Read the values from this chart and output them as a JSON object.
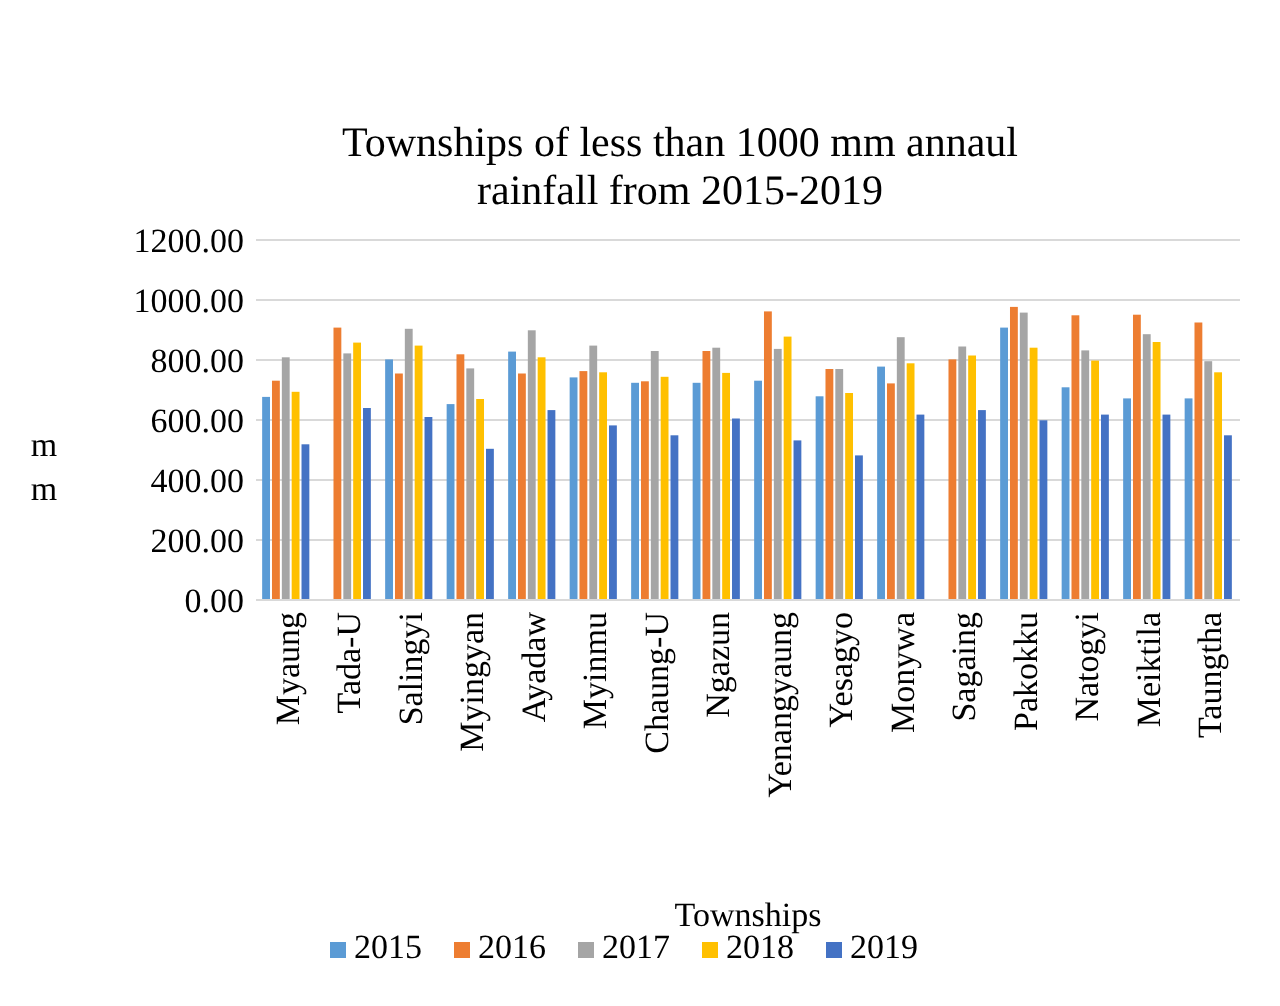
{
  "chart_data": {
    "type": "bar",
    "title": "Townships of less than 1000 mm annaul rainfall from 2015-2019",
    "xlabel": "Townships",
    "ylabel": "mm",
    "categories": [
      "Myaung",
      "Tada-U",
      "Salingyi",
      "Myingyan",
      "Ayadaw",
      "Myinmu",
      "Chaung-U",
      "Ngazun",
      "Yenangyaung",
      "Yesagyo",
      "Monywa",
      "Sagaing",
      "Pakokku",
      "Natogyi",
      "Meiktila",
      "Taungtha"
    ],
    "series": [
      {
        "name": "2015",
        "color": "#5b9bd5",
        "values": [
          677,
          null,
          802,
          653,
          828,
          742,
          724,
          724,
          731,
          679,
          778,
          null,
          908,
          709,
          672,
          672
        ]
      },
      {
        "name": "2016",
        "color": "#ed7d31",
        "values": [
          731,
          908,
          755,
          819,
          755,
          763,
          729,
          830,
          962,
          770,
          722,
          802,
          977,
          949,
          951,
          925
        ]
      },
      {
        "name": "2017",
        "color": "#a5a5a5",
        "values": [
          809,
          822,
          904,
          772,
          899,
          848,
          830,
          841,
          837,
          770,
          876,
          845,
          958,
          832,
          886,
          796
        ]
      },
      {
        "name": "2018",
        "color": "#ffc000",
        "values": [
          694,
          858,
          848,
          670,
          809,
          759,
          744,
          757,
          878,
          690,
          789,
          815,
          841,
          798,
          860,
          759
        ]
      },
      {
        "name": "2019",
        "color": "#4472c4",
        "values": [
          519,
          640,
          610,
          504,
          633,
          582,
          549,
          605,
          532,
          482,
          618,
          633,
          599,
          618,
          618,
          549
        ]
      }
    ],
    "ylim": [
      0,
      1200
    ],
    "yticks": [
      {
        "value": 0,
        "label": "0.00"
      },
      {
        "value": 200,
        "label": "200.00"
      },
      {
        "value": 400,
        "label": "400.00"
      },
      {
        "value": 600,
        "label": "600.00"
      },
      {
        "value": 800,
        "label": "800.00"
      },
      {
        "value": 1000,
        "label": "1000.00"
      },
      {
        "value": 1200,
        "label": "1200.00"
      }
    ],
    "grid": "y",
    "legend": "bottom"
  }
}
